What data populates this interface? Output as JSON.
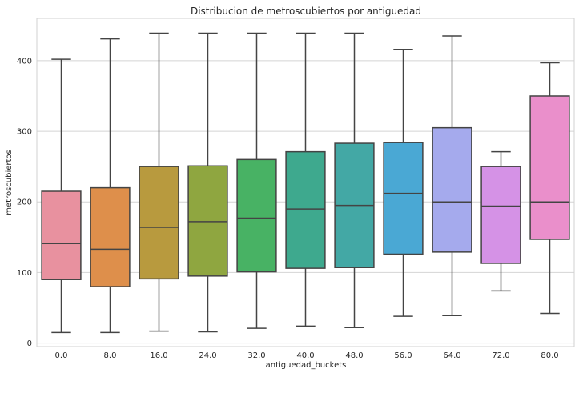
{
  "chart_data": {
    "type": "box",
    "title": "Distribucion de metroscubiertos por antiguedad",
    "xlabel": "antiguedad_buckets",
    "ylabel": "metroscubiertos",
    "ylim": [
      -5,
      460
    ],
    "yticks": [
      0,
      100,
      200,
      300,
      400
    ],
    "grid": "horizontal",
    "categories": [
      "0.0",
      "8.0",
      "16.0",
      "24.0",
      "32.0",
      "40.0",
      "48.0",
      "56.0",
      "64.0",
      "72.0",
      "80.0"
    ],
    "boxes": [
      {
        "category": "0.0",
        "whisker_low": 15,
        "q1": 90,
        "median": 141,
        "q3": 215,
        "whisker_high": 402,
        "color": "#e8919f"
      },
      {
        "category": "8.0",
        "whisker_low": 15,
        "q1": 80,
        "median": 133,
        "q3": 220,
        "whisker_high": 431,
        "color": "#de8f4b"
      },
      {
        "category": "16.0",
        "whisker_low": 17,
        "q1": 91,
        "median": 164,
        "q3": 250,
        "whisker_high": 439,
        "color": "#b89a3e"
      },
      {
        "category": "24.0",
        "whisker_low": 16,
        "q1": 95,
        "median": 172,
        "q3": 251,
        "whisker_high": 439,
        "color": "#8fa640"
      },
      {
        "category": "32.0",
        "whisker_low": 21,
        "q1": 101,
        "median": 177,
        "q3": 260,
        "whisker_high": 439,
        "color": "#48b264"
      },
      {
        "category": "40.0",
        "whisker_low": 24,
        "q1": 106,
        "median": 190,
        "q3": 271,
        "whisker_high": 439,
        "color": "#3ea98e"
      },
      {
        "category": "48.0",
        "whisker_low": 22,
        "q1": 107,
        "median": 195,
        "q3": 283,
        "whisker_high": 439,
        "color": "#43a8a5"
      },
      {
        "category": "56.0",
        "whisker_low": 38,
        "q1": 126,
        "median": 212,
        "q3": 284,
        "whisker_high": 416,
        "color": "#4aa8d4"
      },
      {
        "category": "64.0",
        "whisker_low": 39,
        "q1": 129,
        "median": 200,
        "q3": 305,
        "whisker_high": 435,
        "color": "#a5aaed"
      },
      {
        "category": "72.0",
        "whisker_low": 74,
        "q1": 113,
        "median": 194,
        "q3": 250,
        "whisker_high": 271,
        "color": "#d592e6"
      },
      {
        "category": "80.0",
        "whisker_low": 42,
        "q1": 147,
        "median": 200,
        "q3": 350,
        "whisker_high": 397,
        "color": "#ea8fcb"
      }
    ]
  }
}
